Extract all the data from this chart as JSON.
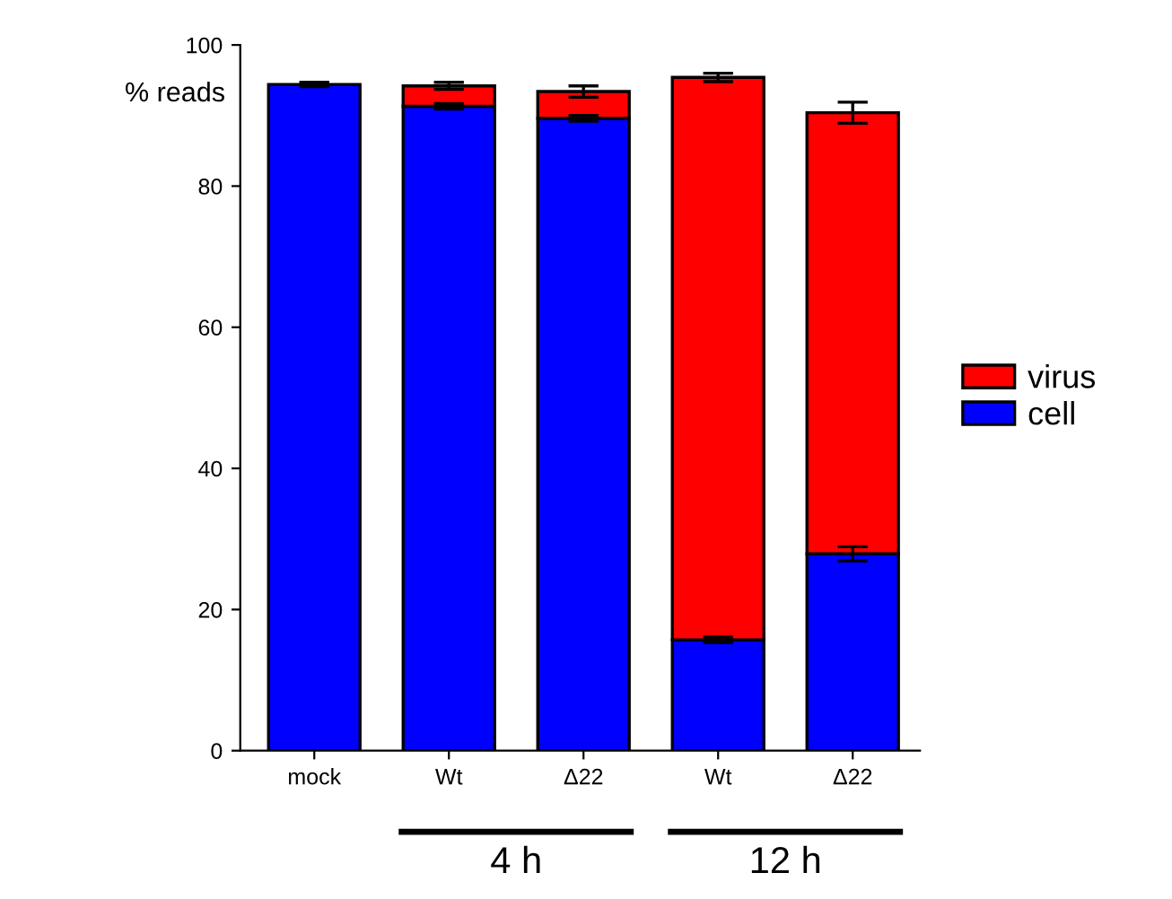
{
  "chart_data": {
    "type": "bar",
    "stacked": true,
    "ylabel": "% reads",
    "categories": [
      "mock",
      "Wt",
      "Δ22",
      "Wt",
      "Δ22"
    ],
    "series": [
      {
        "name": "cell",
        "color": "#0000ff",
        "values": [
          94.4,
          91.3,
          89.6,
          15.7,
          27.9
        ],
        "errors": [
          0.3,
          0.4,
          0.4,
          0.4,
          1.0
        ]
      },
      {
        "name": "virus",
        "color": "#ff0000",
        "values": [
          null,
          2.9,
          3.8,
          79.7,
          62.5
        ],
        "errors": [
          null,
          0.5,
          0.8,
          0.6,
          1.5
        ]
      }
    ],
    "ylim": [
      0,
      100
    ],
    "yticks": [
      0,
      20,
      40,
      60,
      80,
      100
    ],
    "grid": false,
    "legend": "right",
    "annotations": [
      "4 h",
      "12 h"
    ]
  }
}
